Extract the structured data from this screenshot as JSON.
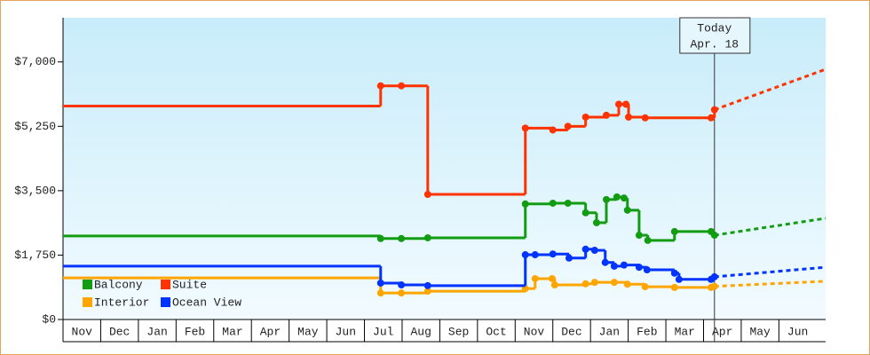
{
  "chart_data": {
    "type": "step-line",
    "ylim": [
      0,
      8200
    ],
    "yticks": [
      {
        "value": 0,
        "label": "$0"
      },
      {
        "value": 1750,
        "label": "$1,750"
      },
      {
        "value": 3500,
        "label": "$3,500"
      },
      {
        "value": 5250,
        "label": "$5,250"
      },
      {
        "value": 7000,
        "label": "$7,000"
      }
    ],
    "xlim": [
      0,
      20.24
    ],
    "xticks": [
      {
        "value": 0,
        "label": "Nov"
      },
      {
        "value": 1,
        "label": "Dec"
      },
      {
        "value": 2,
        "label": "Jan"
      },
      {
        "value": 3,
        "label": "Feb"
      },
      {
        "value": 4,
        "label": "Mar"
      },
      {
        "value": 5,
        "label": "Apr"
      },
      {
        "value": 6,
        "label": "May"
      },
      {
        "value": 7,
        "label": "Jun"
      },
      {
        "value": 8,
        "label": "Jul"
      },
      {
        "value": 9,
        "label": "Aug"
      },
      {
        "value": 10,
        "label": "Sep"
      },
      {
        "value": 11,
        "label": "Oct"
      },
      {
        "value": 12,
        "label": "Nov"
      },
      {
        "value": 13,
        "label": "Dec"
      },
      {
        "value": 14,
        "label": "Jan"
      },
      {
        "value": 15,
        "label": "Feb"
      },
      {
        "value": 16,
        "label": "Mar"
      },
      {
        "value": 17,
        "label": "Apr"
      },
      {
        "value": 18,
        "label": "May"
      },
      {
        "value": 19,
        "label": "Jun"
      }
    ],
    "annotation": {
      "x": 17.29,
      "lines": [
        "Today",
        "Apr. 18"
      ]
    },
    "series": [
      {
        "name": "Balcony",
        "color": "#129c12",
        "x": [
          0,
          8.43,
          8.98,
          9.68,
          12.27,
          13.0,
          13.4,
          13.87,
          14.16,
          14.42,
          14.7,
          14.89,
          14.98,
          15.29,
          15.52,
          16.23,
          17.2,
          17.29,
          20.24
        ],
        "values": [
          2270,
          2200,
          2200,
          2220,
          3140,
          3160,
          3160,
          2900,
          2630,
          3260,
          3330,
          3300,
          2970,
          2290,
          2150,
          2390,
          2390,
          2290,
          2750
        ]
      },
      {
        "name": "Suite",
        "color": "#ff3300",
        "x": [
          0,
          8.43,
          8.98,
          9.68,
          12.27,
          13.0,
          13.4,
          13.87,
          14.42,
          14.75,
          14.94,
          15.01,
          15.45,
          17.2,
          17.29,
          20.24
        ],
        "values": [
          5800,
          6350,
          6350,
          3400,
          5200,
          5150,
          5250,
          5500,
          5550,
          5850,
          5850,
          5500,
          5480,
          5480,
          5700,
          6800
        ]
      },
      {
        "name": "Interior",
        "color": "#ffa500",
        "x": [
          0,
          8.43,
          8.98,
          9.68,
          12.27,
          12.53,
          12.98,
          13.05,
          13.87,
          14.11,
          14.63,
          14.98,
          15.45,
          16.23,
          17.2,
          17.29,
          20.24
        ],
        "values": [
          1130,
          720,
          720,
          770,
          840,
          1110,
          1110,
          940,
          970,
          1010,
          1010,
          960,
          890,
          870,
          870,
          900,
          1040
        ]
      },
      {
        "name": "Ocean View",
        "color": "#0033ff",
        "x": [
          0,
          8.43,
          8.98,
          9.68,
          12.27,
          12.53,
          13.0,
          13.43,
          13.87,
          14.11,
          14.39,
          14.63,
          14.89,
          15.29,
          15.5,
          16.23,
          16.35,
          17.2,
          17.29,
          20.24
        ],
        "values": [
          1450,
          990,
          940,
          920,
          1760,
          1760,
          1780,
          1670,
          1910,
          1880,
          1550,
          1450,
          1480,
          1420,
          1350,
          1260,
          1090,
          1090,
          1160,
          1420
        ]
      }
    ]
  }
}
